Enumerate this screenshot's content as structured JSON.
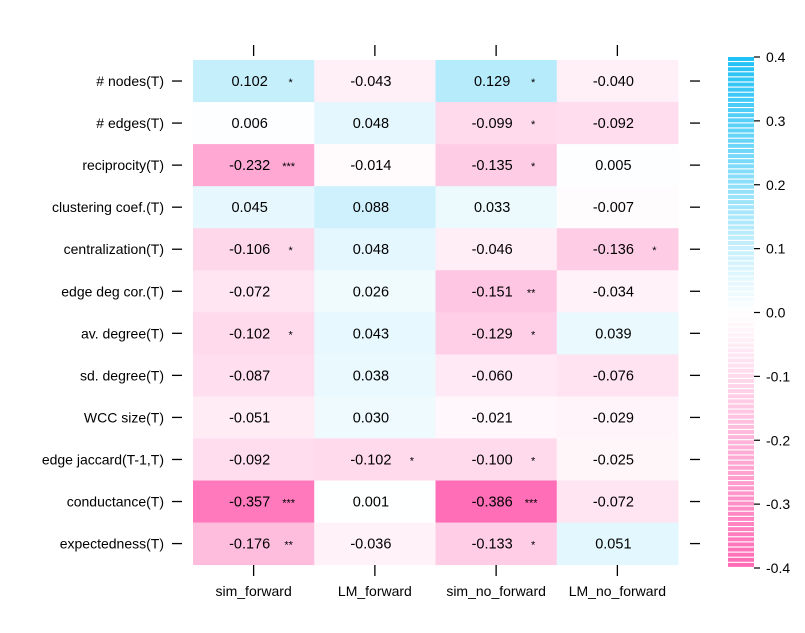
{
  "chart_data": {
    "type": "heatmap",
    "title": "",
    "xlabel": "",
    "ylabel": "",
    "columns": [
      "sim_forward",
      "LM_forward",
      "sim_no_forward",
      "LM_no_forward"
    ],
    "rows": [
      "# nodes(T)",
      "# edges(T)",
      "reciprocity(T)",
      "clustering coef.(T)",
      "centralization(T)",
      "edge deg cor.(T)",
      "av. degree(T)",
      "sd. degree(T)",
      "WCC size(T)",
      "edge jaccard(T-1,T)",
      "conductance(T)",
      "expectedness(T)"
    ],
    "values": [
      [
        0.102,
        -0.043,
        0.129,
        -0.04
      ],
      [
        0.006,
        0.048,
        -0.099,
        -0.092
      ],
      [
        -0.232,
        -0.014,
        -0.135,
        0.005
      ],
      [
        0.045,
        0.088,
        0.033,
        -0.007
      ],
      [
        -0.106,
        0.048,
        -0.046,
        -0.136
      ],
      [
        -0.072,
        0.026,
        -0.151,
        -0.034
      ],
      [
        -0.102,
        0.043,
        -0.129,
        0.039
      ],
      [
        -0.087,
        0.038,
        -0.06,
        -0.076
      ],
      [
        -0.051,
        0.03,
        -0.021,
        -0.029
      ],
      [
        -0.092,
        -0.102,
        -0.1,
        -0.025
      ],
      [
        -0.357,
        0.001,
        -0.386,
        -0.072
      ],
      [
        -0.176,
        -0.036,
        -0.133,
        0.051
      ]
    ],
    "labels": [
      [
        "0.102",
        "-0.043",
        "0.129",
        "-0.040"
      ],
      [
        "0.006",
        "0.048",
        "-0.099",
        "-0.092"
      ],
      [
        "-0.232",
        "-0.014",
        "-0.135",
        "0.005"
      ],
      [
        "0.045",
        "0.088",
        "0.033",
        "-0.007"
      ],
      [
        "-0.106",
        "0.048",
        "-0.046",
        "-0.136"
      ],
      [
        "-0.072",
        "0.026",
        "-0.151",
        "-0.034"
      ],
      [
        "-0.102",
        "0.043",
        "-0.129",
        "0.039"
      ],
      [
        "-0.087",
        "0.038",
        "-0.060",
        "-0.076"
      ],
      [
        "-0.051",
        "0.030",
        "-0.021",
        "-0.029"
      ],
      [
        "-0.092",
        "-0.102",
        "-0.100",
        "-0.025"
      ],
      [
        "-0.357",
        "0.001",
        "-0.386",
        "-0.072"
      ],
      [
        "-0.176",
        "-0.036",
        "-0.133",
        "0.051"
      ]
    ],
    "significance": [
      [
        "*",
        "",
        "*",
        ""
      ],
      [
        "",
        "",
        "*",
        ""
      ],
      [
        "***",
        "",
        "*",
        ""
      ],
      [
        "",
        "",
        "",
        ""
      ],
      [
        "*",
        "",
        "",
        "*"
      ],
      [
        "",
        "",
        "**",
        ""
      ],
      [
        "*",
        "",
        "*",
        ""
      ],
      [
        "",
        "",
        "",
        ""
      ],
      [
        "",
        "",
        "",
        ""
      ],
      [
        "",
        "*",
        "*",
        ""
      ],
      [
        "***",
        "",
        "***",
        ""
      ],
      [
        "**",
        "",
        "*",
        ""
      ]
    ],
    "colorbar": {
      "range": [
        -0.4,
        0.4
      ],
      "ticks": [
        "0.4",
        "0.3",
        "0.2",
        "0.1",
        "0.0",
        "-0.1",
        "-0.2",
        "-0.3",
        "-0.4"
      ],
      "positive_color": "#1ec0f5",
      "negative_color": "#ff69b4"
    },
    "grid": false
  }
}
